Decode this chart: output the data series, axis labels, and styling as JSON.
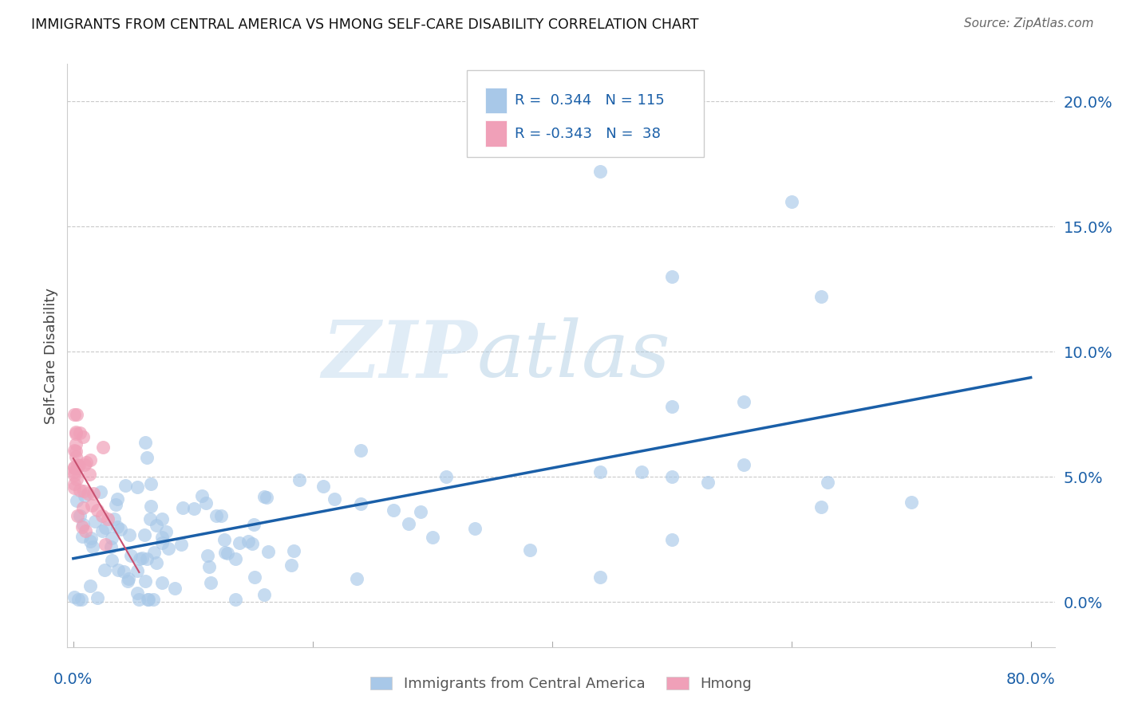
{
  "title": "IMMIGRANTS FROM CENTRAL AMERICA VS HMONG SELF-CARE DISABILITY CORRELATION CHART",
  "source": "Source: ZipAtlas.com",
  "ylabel": "Self-Care Disability",
  "ytick_labels": [
    "0.0%",
    "5.0%",
    "10.0%",
    "15.0%",
    "20.0%"
  ],
  "ytick_values": [
    0.0,
    0.05,
    0.1,
    0.15,
    0.2
  ],
  "xtick_labels": [
    "0.0%",
    "80.0%"
  ],
  "xtick_values": [
    0.0,
    0.8
  ],
  "xlim": [
    -0.005,
    0.82
  ],
  "ylim": [
    -0.018,
    0.215
  ],
  "blue_R": 0.344,
  "blue_N": 115,
  "pink_R": -0.343,
  "pink_N": 38,
  "blue_color": "#a8c8e8",
  "pink_color": "#f0a0b8",
  "blue_line_color": "#1a5fa8",
  "pink_line_color": "#c85070",
  "watermark_zip": "ZIP",
  "watermark_atlas": "atlas",
  "legend_label_blue": "Immigrants from Central America",
  "legend_label_pink": "Hmong",
  "grid_color": "#bbbbbb",
  "background_color": "#ffffff",
  "blue_intercept": 0.02,
  "blue_slope": 0.05,
  "pink_intercept": 0.055,
  "pink_slope": -0.7
}
